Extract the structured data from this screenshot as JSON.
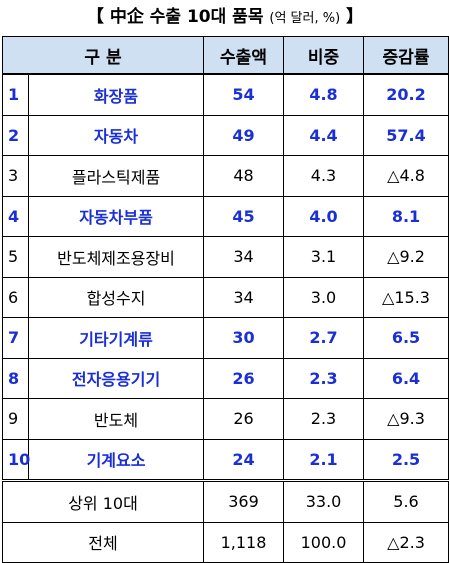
{
  "title": {
    "main": "【 中企 수출 10대 품목",
    "unit": "(억 달러, %)",
    "close": "】"
  },
  "table": {
    "headers": [
      "구  분",
      "수출액",
      "비중",
      "증감률"
    ],
    "rows": [
      {
        "rank": "1",
        "item": "화장품",
        "export": "54",
        "share": "4.8",
        "change": "20.2",
        "highlight": true
      },
      {
        "rank": "2",
        "item": "자동차",
        "export": "49",
        "share": "4.4",
        "change": "57.4",
        "highlight": true
      },
      {
        "rank": "3",
        "item": "플라스틱제품",
        "export": "48",
        "share": "4.3",
        "change": "△4.8",
        "highlight": false
      },
      {
        "rank": "4",
        "item": "자동차부품",
        "export": "45",
        "share": "4.0",
        "change": "8.1",
        "highlight": true
      },
      {
        "rank": "5",
        "item": "반도체제조용장비",
        "export": "34",
        "share": "3.1",
        "change": "△9.2",
        "highlight": false
      },
      {
        "rank": "6",
        "item": "합성수지",
        "export": "34",
        "share": "3.0",
        "change": "△15.3",
        "highlight": false
      },
      {
        "rank": "7",
        "item": "기타기계류",
        "export": "30",
        "share": "2.7",
        "change": "6.5",
        "highlight": true
      },
      {
        "rank": "8",
        "item": "전자응용기기",
        "export": "26",
        "share": "2.3",
        "change": "6.4",
        "highlight": true
      },
      {
        "rank": "9",
        "item": "반도체",
        "export": "26",
        "share": "2.3",
        "change": "△9.3",
        "highlight": false
      },
      {
        "rank": "10",
        "item": "기계요소",
        "export": "24",
        "share": "2.1",
        "change": "2.5",
        "highlight": true
      }
    ],
    "summary": [
      {
        "label": "상위 10대",
        "export": "369",
        "share": "33.0",
        "change": "5.6"
      },
      {
        "label": "전체",
        "export": "1,118",
        "share": "100.0",
        "change": "△2.3"
      }
    ]
  },
  "colors": {
    "header_bg": "#cfe0f2",
    "highlight_text": "#1a2fd6"
  }
}
